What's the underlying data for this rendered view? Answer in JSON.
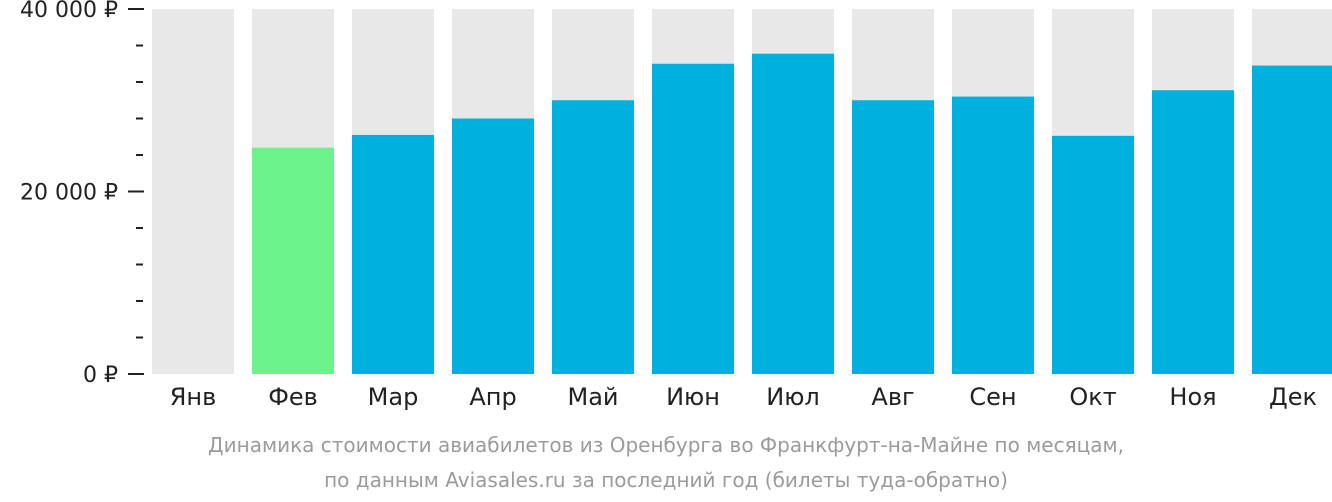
{
  "chart_data": {
    "type": "bar",
    "categories": [
      "Янв",
      "Фев",
      "Мар",
      "Апр",
      "Май",
      "Июн",
      "Июл",
      "Авг",
      "Сен",
      "Окт",
      "Ноя",
      "Дек"
    ],
    "values": [
      null,
      24800,
      26200,
      28000,
      30000,
      34000,
      35100,
      30000,
      30400,
      26100,
      31100,
      33800
    ],
    "ylim": [
      0,
      40000
    ],
    "major_ticks": [
      0,
      20000,
      40000
    ],
    "major_tick_labels": [
      "0 ₽",
      "20 000 ₽",
      "40 000 ₽"
    ],
    "minor_tick_step": 4000,
    "highlight_index": 1,
    "grid": false,
    "colors": {
      "bar": "#00b0dd",
      "highlight": "#6cf28a",
      "background_column": "#e8e8e8",
      "tick_text": "#222222",
      "axis": "#222222",
      "caption": "#9b9b9b"
    }
  },
  "caption": {
    "line1": "Динамика стоимости авиабилетов из Оренбурга во Франкфурт-на-Майне по месяцам,",
    "line2": "по данным Aviasales.ru за последний год (билеты туда-обратно)"
  }
}
